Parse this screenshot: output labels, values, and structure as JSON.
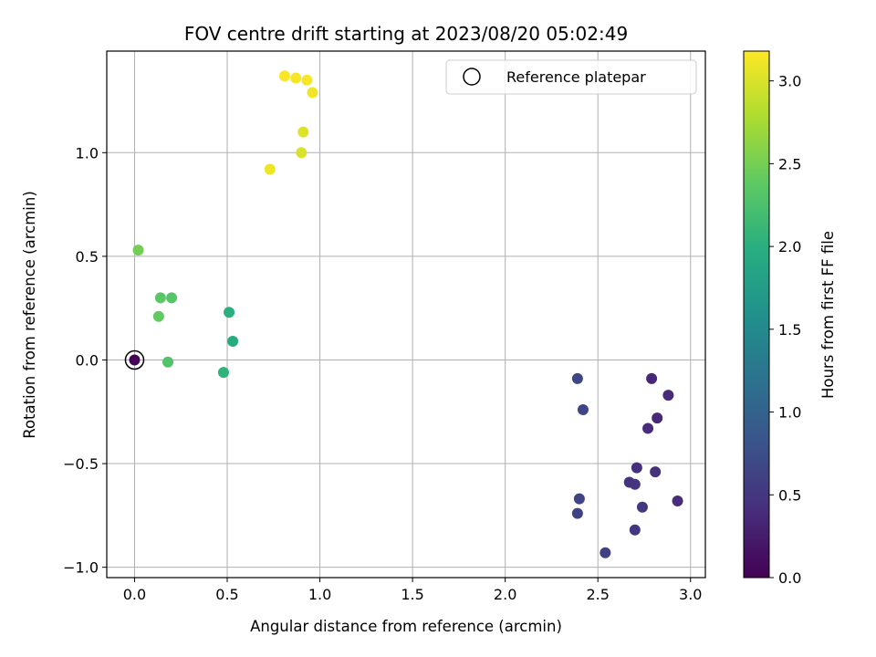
{
  "chart_data": {
    "type": "scatter",
    "title": "FOV centre drift starting at 2023/08/20 05:02:49",
    "xlabel": "Angular distance from reference (arcmin)",
    "ylabel": "Rotation from reference (arcmin)",
    "xlim": [
      -0.15,
      3.08
    ],
    "ylim": [
      -1.05,
      1.49
    ],
    "xticks": [
      0.0,
      0.5,
      1.0,
      1.5,
      2.0,
      2.5,
      3.0
    ],
    "xtick_labels": [
      "0.0",
      "0.5",
      "1.0",
      "1.5",
      "2.0",
      "2.5",
      "3.0"
    ],
    "yticks": [
      -1.0,
      -0.5,
      0.0,
      0.5,
      1.0
    ],
    "ytick_labels": [
      "−1.0",
      "−0.5",
      "0.0",
      "0.5",
      "1.0"
    ],
    "grid": true,
    "legend": {
      "position": "top-right",
      "entries": [
        "Reference platepar"
      ]
    },
    "reference_point": {
      "x": 0.0,
      "y": 0.0,
      "hours": 0.0
    },
    "colorbar": {
      "label": "Hours from first FF file",
      "colormap": "viridis",
      "range": [
        0.0,
        3.18
      ],
      "ticks": [
        0.0,
        0.5,
        1.0,
        1.5,
        2.0,
        2.5,
        3.0
      ],
      "tick_labels": [
        "0.0",
        "0.5",
        "1.0",
        "1.5",
        "2.0",
        "2.5",
        "3.0"
      ]
    },
    "points": [
      {
        "x": 0.0,
        "y": 0.0,
        "hours": 0.02
      },
      {
        "x": 2.79,
        "y": -0.09,
        "hours": 0.35
      },
      {
        "x": 2.88,
        "y": -0.17,
        "hours": 0.38
      },
      {
        "x": 2.82,
        "y": -0.28,
        "hours": 0.36
      },
      {
        "x": 2.77,
        "y": -0.33,
        "hours": 0.4
      },
      {
        "x": 2.71,
        "y": -0.52,
        "hours": 0.42
      },
      {
        "x": 2.81,
        "y": -0.54,
        "hours": 0.44
      },
      {
        "x": 2.67,
        "y": -0.59,
        "hours": 0.46
      },
      {
        "x": 2.7,
        "y": -0.6,
        "hours": 0.48
      },
      {
        "x": 2.93,
        "y": -0.68,
        "hours": 0.4
      },
      {
        "x": 2.74,
        "y": -0.71,
        "hours": 0.5
      },
      {
        "x": 2.7,
        "y": -0.82,
        "hours": 0.52
      },
      {
        "x": 2.54,
        "y": -0.93,
        "hours": 0.6
      },
      {
        "x": 2.39,
        "y": -0.74,
        "hours": 0.62
      },
      {
        "x": 2.4,
        "y": -0.67,
        "hours": 0.64
      },
      {
        "x": 2.42,
        "y": -0.24,
        "hours": 0.66
      },
      {
        "x": 2.39,
        "y": -0.09,
        "hours": 0.68
      },
      {
        "x": 0.53,
        "y": 0.09,
        "hours": 1.95
      },
      {
        "x": 0.51,
        "y": 0.23,
        "hours": 2.0
      },
      {
        "x": 0.48,
        "y": -0.06,
        "hours": 2.05
      },
      {
        "x": 0.18,
        "y": -0.01,
        "hours": 2.3
      },
      {
        "x": 0.13,
        "y": 0.21,
        "hours": 2.4
      },
      {
        "x": 0.14,
        "y": 0.3,
        "hours": 2.35
      },
      {
        "x": 0.2,
        "y": 0.3,
        "hours": 2.32
      },
      {
        "x": 0.02,
        "y": 0.53,
        "hours": 2.5
      },
      {
        "x": 0.73,
        "y": 0.92,
        "hours": 3.1
      },
      {
        "x": 0.9,
        "y": 1.0,
        "hours": 3.0
      },
      {
        "x": 0.91,
        "y": 1.1,
        "hours": 3.02
      },
      {
        "x": 0.96,
        "y": 1.29,
        "hours": 3.12
      },
      {
        "x": 0.93,
        "y": 1.35,
        "hours": 3.14
      },
      {
        "x": 0.87,
        "y": 1.36,
        "hours": 3.15
      },
      {
        "x": 0.81,
        "y": 1.37,
        "hours": 3.16
      }
    ]
  }
}
